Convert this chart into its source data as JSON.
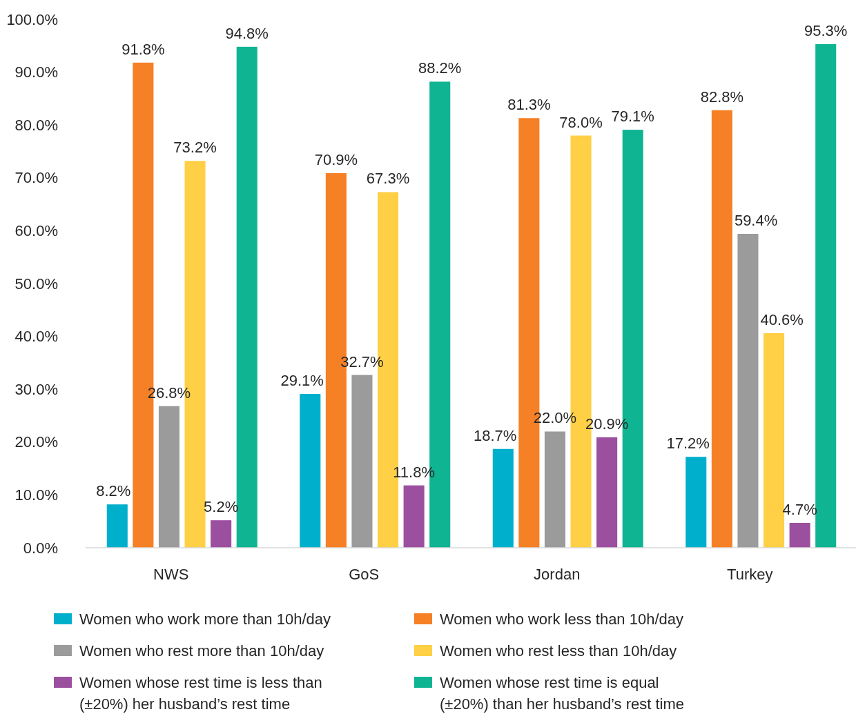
{
  "chart_data": {
    "type": "bar",
    "categories": [
      "NWS",
      "GoS",
      "Jordan",
      "Turkey"
    ],
    "series": [
      {
        "name": "Women who work more than 10h/day",
        "color": "#00afcb",
        "values": [
          8.2,
          29.1,
          18.7,
          17.2
        ],
        "value_labels": [
          "8.2%",
          "29.1%",
          "18.7%",
          "17.2%"
        ]
      },
      {
        "name": "Women who work less than 10h/day",
        "color": "#f58025",
        "values": [
          91.8,
          70.9,
          81.3,
          82.8
        ],
        "value_labels": [
          "91.8%",
          "70.9%",
          "81.3%",
          "82.8%"
        ]
      },
      {
        "name": "Women who rest more than 10h/day",
        "color": "#9b9b9b",
        "values": [
          26.8,
          32.7,
          22.0,
          59.4
        ],
        "value_labels": [
          "26.8%",
          "32.7%",
          "22.0%",
          "59.4%"
        ]
      },
      {
        "name": "Women who rest less than 10h/day",
        "color": "#ffd045",
        "values": [
          73.2,
          67.3,
          78.0,
          40.6
        ],
        "value_labels": [
          "73.2%",
          "67.3%",
          "78.0%",
          "40.6%"
        ]
      },
      {
        "name": "Women whose rest time is less than (±20%) her husband’s rest time",
        "color": "#9b4f9f",
        "values": [
          5.2,
          11.8,
          20.9,
          4.7
        ],
        "value_labels": [
          "5.2%",
          "11.8%",
          "20.9%",
          "4.7%"
        ]
      },
      {
        "name": "Women whose rest time is equal (±20%) than her husband’s rest time",
        "color": "#0fb592",
        "values": [
          94.8,
          88.2,
          79.1,
          95.3
        ],
        "value_labels": [
          "94.8%",
          "88.2%",
          "79.1%",
          "95.3%"
        ]
      }
    ],
    "ylim": [
      0,
      100
    ],
    "yticks": [
      {
        "value": 0,
        "label": "0.0%"
      },
      {
        "value": 10,
        "label": "10.0%"
      },
      {
        "value": 20,
        "label": "20.0%"
      },
      {
        "value": 30,
        "label": "30.0%"
      },
      {
        "value": 40,
        "label": "40.0%"
      },
      {
        "value": 50,
        "label": "50.0%"
      },
      {
        "value": 60,
        "label": "60.0%"
      },
      {
        "value": 70,
        "label": "70.0%"
      },
      {
        "value": 80,
        "label": "80.0%"
      },
      {
        "value": 90,
        "label": "90.0%"
      },
      {
        "value": 100,
        "label": "100.0%"
      }
    ],
    "legend": "bottom"
  }
}
